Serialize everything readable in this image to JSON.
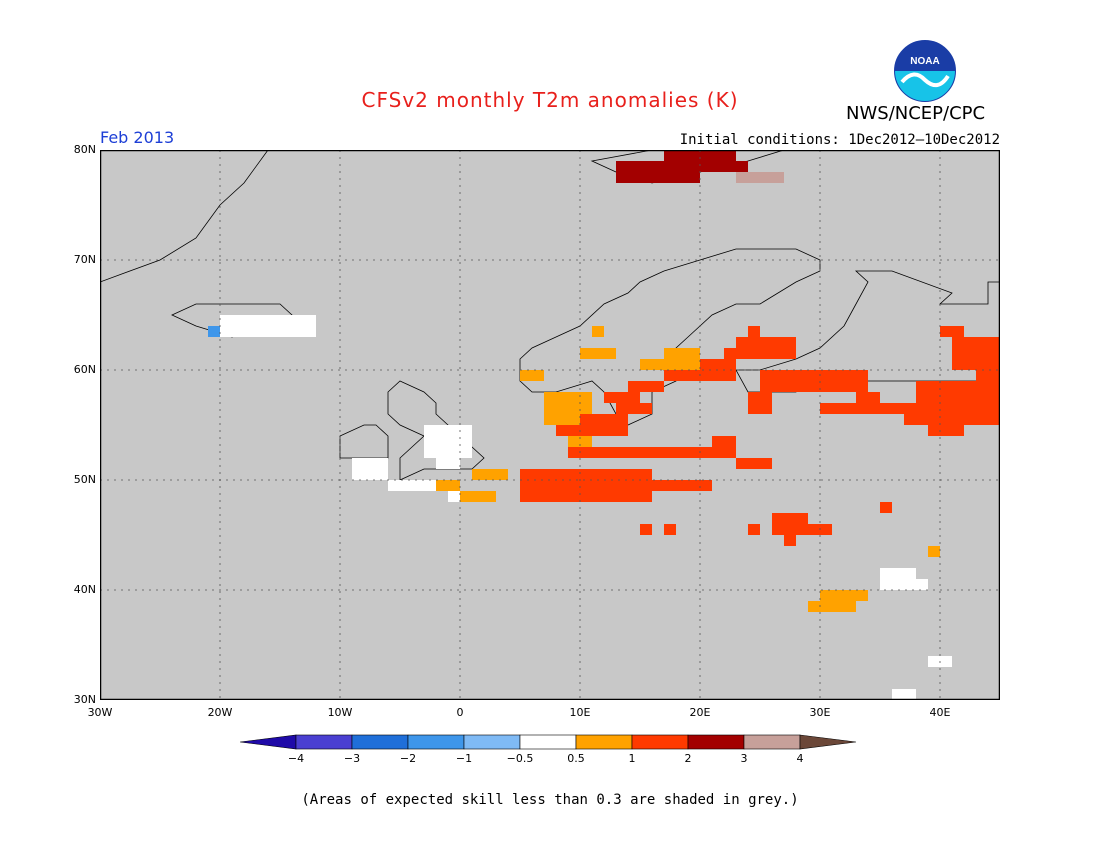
{
  "title": "CFSv2 monthly T2m anomalies (K)",
  "agency": "NWS/NCEP/CPC",
  "logo_text": "NOAA",
  "period": "Feb 2013",
  "initial_conditions": "Initial conditions: 1Dec2012—10Dec2012",
  "footnote": "(Areas of expected skill less than 0.3 are shaded in grey.)",
  "map": {
    "lon_range": [
      -30,
      45
    ],
    "lat_range": [
      30,
      80
    ],
    "background_color": "#c8c8c8",
    "lat_ticks": [
      "30N",
      "40N",
      "50N",
      "60N",
      "70N",
      "80N"
    ],
    "lon_ticks": [
      "30W",
      "20W",
      "10W",
      "0",
      "10E",
      "20E",
      "30E",
      "40E"
    ]
  },
  "colorbar": {
    "tick_labels": [
      "−4",
      "−3",
      "−2",
      "−1",
      "−0.5",
      "0.5",
      "1",
      "2",
      "3",
      "4"
    ],
    "colors": [
      "#1f0aa8",
      "#4a3fd1",
      "#1f6fd9",
      "#3e96ea",
      "#7fbaf5",
      "#ffffff",
      "#ffa200",
      "#ff3a00",
      "#a30000",
      "#c7a09a",
      "#6b4738"
    ]
  },
  "anomaly_colors": {
    "neutral": "#ffffff",
    "weak_cold": "#3e96ea",
    "warm_05_1": "#ffa200",
    "warm_1_2": "#ff3a00",
    "warm_2_3": "#a30000",
    "warm_3_4": "#c7a09a"
  },
  "anomaly_regions": [
    {
      "level": "neutral",
      "cells": [
        [
          -20,
          65,
          8,
          2
        ],
        [
          -3,
          55,
          4,
          3
        ],
        [
          -9,
          52,
          3,
          2
        ],
        [
          -2,
          52,
          2,
          1
        ],
        [
          -6,
          50,
          4,
          1
        ],
        [
          -1,
          49,
          2,
          1
        ],
        [
          22,
          30,
          7,
          2
        ],
        [
          26,
          30,
          2,
          1
        ],
        [
          35,
          42,
          3,
          2
        ],
        [
          37,
          41,
          2,
          1
        ],
        [
          30,
          39,
          3,
          1
        ],
        [
          39,
          34,
          2,
          1
        ],
        [
          36,
          31,
          2,
          2
        ],
        [
          38,
          30,
          2,
          1
        ],
        [
          14,
          30,
          1,
          1
        ]
      ]
    },
    {
      "level": "weak_cold",
      "cells": [
        [
          -21,
          64,
          1,
          1
        ]
      ]
    },
    {
      "level": "warm_05_1",
      "cells": [
        [
          1,
          51,
          1,
          1
        ],
        [
          -2,
          50,
          2,
          1
        ],
        [
          0,
          49,
          3,
          1
        ],
        [
          2,
          51,
          2,
          1
        ],
        [
          7,
          58,
          4,
          3
        ],
        [
          5,
          60,
          2,
          1
        ],
        [
          10,
          62,
          3,
          1
        ],
        [
          11,
          64,
          1,
          1
        ],
        [
          17,
          62,
          3,
          2
        ],
        [
          15,
          61,
          2,
          1
        ],
        [
          11,
          56,
          1,
          1
        ],
        [
          9,
          54,
          2,
          1
        ],
        [
          30,
          40,
          4,
          1
        ],
        [
          32,
          40,
          2,
          1
        ],
        [
          29,
          39,
          4,
          1
        ],
        [
          39,
          44,
          1,
          1
        ],
        [
          45,
          38,
          1,
          1
        ],
        [
          31,
          30,
          1,
          1
        ]
      ]
    },
    {
      "level": "warm_1_2",
      "cells": [
        [
          5,
          51,
          11,
          3
        ],
        [
          9,
          53,
          14,
          1
        ],
        [
          6,
          50,
          1,
          1
        ],
        [
          13,
          50,
          8,
          1
        ],
        [
          23,
          52,
          3,
          1
        ],
        [
          17,
          53,
          2,
          1
        ],
        [
          19,
          53,
          2,
          1
        ],
        [
          21,
          54,
          2,
          1
        ],
        [
          8,
          55,
          3,
          1
        ],
        [
          10,
          56,
          4,
          2
        ],
        [
          12,
          58,
          3,
          1
        ],
        [
          13,
          57,
          3,
          1
        ],
        [
          14,
          59,
          3,
          1
        ],
        [
          17,
          60,
          3,
          1
        ],
        [
          20,
          61,
          3,
          2
        ],
        [
          22,
          62,
          6,
          1
        ],
        [
          23,
          63,
          5,
          1
        ],
        [
          24,
          64,
          1,
          1
        ],
        [
          25,
          60,
          9,
          2
        ],
        [
          27,
          59,
          6,
          1
        ],
        [
          24,
          58,
          2,
          2
        ],
        [
          33,
          58,
          2,
          1
        ],
        [
          30,
          57,
          8,
          1
        ],
        [
          39,
          56,
          3,
          2
        ],
        [
          37,
          57,
          8,
          2
        ],
        [
          38,
          59,
          7,
          2
        ],
        [
          43,
          61,
          2,
          6
        ],
        [
          41,
          63,
          4,
          3
        ],
        [
          40,
          64,
          2,
          1
        ],
        [
          26,
          47,
          3,
          2
        ],
        [
          28,
          46,
          3,
          1
        ],
        [
          27,
          45,
          1,
          1
        ],
        [
          35,
          48,
          1,
          1
        ],
        [
          24,
          46,
          1,
          1
        ],
        [
          15,
          46,
          1,
          1
        ],
        [
          17,
          46,
          1,
          1
        ]
      ]
    },
    {
      "level": "warm_2_3",
      "cells": [
        [
          13,
          79,
          7,
          2
        ],
        [
          17,
          80,
          6,
          1
        ],
        [
          20,
          79,
          2,
          1
        ],
        [
          22,
          79,
          2,
          1
        ]
      ]
    },
    {
      "level": "warm_3_4",
      "cells": [
        [
          23,
          78,
          4,
          1
        ]
      ]
    }
  ],
  "land_polygons": [
    {
      "name": "scandinavia",
      "points": [
        [
          5,
          59
        ],
        [
          5,
          61
        ],
        [
          6,
          62
        ],
        [
          8,
          63
        ],
        [
          10,
          64
        ],
        [
          12,
          66
        ],
        [
          14,
          67
        ],
        [
          15,
          68
        ],
        [
          17,
          69
        ],
        [
          20,
          70
        ],
        [
          23,
          71
        ],
        [
          26,
          71
        ],
        [
          28,
          71
        ],
        [
          30,
          70
        ],
        [
          30,
          69
        ],
        [
          28,
          68
        ],
        [
          25,
          66
        ],
        [
          23,
          66
        ],
        [
          21,
          65
        ],
        [
          19,
          63
        ],
        [
          18,
          62
        ],
        [
          17,
          60
        ],
        [
          19,
          60
        ],
        [
          18,
          59
        ],
        [
          16,
          58
        ],
        [
          16,
          56
        ],
        [
          14,
          55
        ],
        [
          13,
          56
        ],
        [
          12,
          58
        ],
        [
          11,
          59
        ],
        [
          8,
          58
        ],
        [
          6,
          58
        ]
      ]
    },
    {
      "name": "finland_russia",
      "points": [
        [
          22,
          60
        ],
        [
          25,
          60
        ],
        [
          28,
          61
        ],
        [
          30,
          62
        ],
        [
          32,
          64
        ],
        [
          33,
          66
        ],
        [
          34,
          68
        ],
        [
          33,
          69
        ],
        [
          36,
          69
        ],
        [
          41,
          67
        ],
        [
          40,
          66
        ],
        [
          44,
          66
        ],
        [
          44,
          68
        ],
        [
          45,
          68
        ],
        [
          45,
          59
        ],
        [
          29,
          59
        ],
        [
          28,
          58
        ],
        [
          24,
          58
        ],
        [
          23,
          60
        ]
      ]
    },
    {
      "name": "britain",
      "points": [
        [
          -5,
          50
        ],
        [
          -3,
          51
        ],
        [
          1,
          51
        ],
        [
          2,
          52
        ],
        [
          1,
          53
        ],
        [
          0,
          54
        ],
        [
          -2,
          56
        ],
        [
          -2,
          57
        ],
        [
          -3,
          58
        ],
        [
          -5,
          59
        ],
        [
          -6,
          58
        ],
        [
          -6,
          56
        ],
        [
          -5,
          55
        ],
        [
          -3,
          54
        ],
        [
          -4,
          53
        ],
        [
          -5,
          52
        ],
        [
          -5,
          51
        ]
      ]
    },
    {
      "name": "ireland",
      "points": [
        [
          -10,
          52
        ],
        [
          -6,
          52
        ],
        [
          -6,
          54
        ],
        [
          -7,
          55
        ],
        [
          -8,
          55
        ],
        [
          -10,
          54
        ]
      ]
    },
    {
      "name": "iceland",
      "points": [
        [
          -24,
          65
        ],
        [
          -22,
          66
        ],
        [
          -18,
          66
        ],
        [
          -15,
          66
        ],
        [
          -14,
          65
        ],
        [
          -16,
          64
        ],
        [
          -19,
          63
        ],
        [
          -22,
          64
        ]
      ]
    },
    {
      "name": "svalbard",
      "points": [
        [
          11,
          79
        ],
        [
          16,
          80
        ],
        [
          22,
          80
        ],
        [
          27,
          80
        ],
        [
          24,
          79
        ],
        [
          20,
          78
        ],
        [
          16,
          77
        ],
        [
          13,
          78
        ]
      ]
    },
    {
      "name": "greenland_edge",
      "points": [
        [
          -30,
          68
        ],
        [
          -25,
          70
        ],
        [
          -22,
          72
        ],
        [
          -20,
          75
        ],
        [
          -18,
          77
        ],
        [
          -16,
          80
        ],
        [
          -30,
          80
        ]
      ]
    }
  ]
}
